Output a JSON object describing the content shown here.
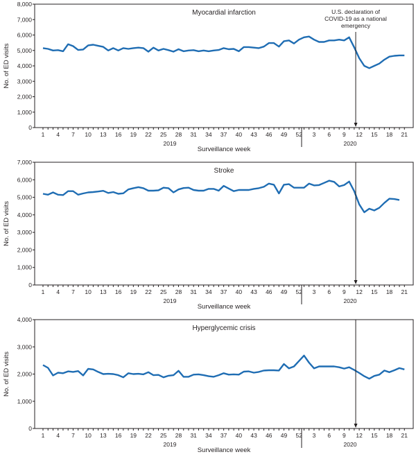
{
  "chart_data": [
    {
      "type": "line",
      "title": "Myocardial infarction",
      "ylabel": "No. of ED visits",
      "xlabel": "Surveillance week",
      "ylim": [
        0,
        8000
      ],
      "yticks": [
        0,
        1000,
        2000,
        3000,
        4000,
        5000,
        6000,
        7000,
        8000
      ],
      "ytick_labels": [
        "0",
        "1,000",
        "2,000",
        "3,000",
        "4,000",
        "5,000",
        "6,000",
        "7,000",
        "8,000"
      ],
      "years": [
        "2019",
        "2020"
      ],
      "annotation": {
        "text_lines": [
          "U.S. declaration of",
          "COVID-19 as a national",
          "emergency"
        ],
        "week_2020": 11.3
      },
      "series": [
        {
          "name": "Myocardial infarction",
          "color": "#1f6db3",
          "values_2019": [
            5150,
            5100,
            5000,
            5020,
            4950,
            5400,
            5280,
            5030,
            5060,
            5330,
            5370,
            5300,
            5230,
            5000,
            5150,
            5000,
            5150,
            5100,
            5150,
            5180,
            5150,
            4920,
            5180,
            5000,
            5100,
            5020,
            4920,
            5080,
            4950,
            5000,
            5020,
            4950,
            5000,
            4950,
            5000,
            5030,
            5150,
            5080,
            5100,
            4950,
            5220,
            5220,
            5180,
            5150,
            5250,
            5480,
            5480,
            5250,
            5600,
            5650,
            5450,
            5700
          ],
          "values_2020": [
            5850,
            5900,
            5700,
            5550,
            5550,
            5650,
            5650,
            5700,
            5650,
            5850,
            5200,
            4500,
            4000,
            3850,
            4000,
            4150,
            4400,
            4600,
            4650,
            4680,
            4680
          ]
        }
      ]
    },
    {
      "type": "line",
      "title": "Stroke",
      "ylabel": "No. of ED visits",
      "xlabel": "Surveillance week",
      "ylim": [
        0,
        7000
      ],
      "yticks": [
        0,
        1000,
        2000,
        3000,
        4000,
        5000,
        6000,
        7000
      ],
      "ytick_labels": [
        "0",
        "1,000",
        "2,000",
        "3,000",
        "4,000",
        "5,000",
        "6,000",
        "7,000"
      ],
      "years": [
        "2019",
        "2020"
      ],
      "annotation": {
        "week_2020": 11.3
      },
      "series": [
        {
          "name": "Stroke",
          "color": "#1f6db3",
          "values_2019": [
            5200,
            5150,
            5280,
            5150,
            5130,
            5350,
            5350,
            5150,
            5220,
            5280,
            5300,
            5330,
            5370,
            5250,
            5300,
            5200,
            5230,
            5450,
            5520,
            5580,
            5520,
            5380,
            5380,
            5400,
            5550,
            5520,
            5280,
            5450,
            5530,
            5550,
            5420,
            5380,
            5380,
            5480,
            5480,
            5380,
            5650,
            5500,
            5350,
            5420,
            5420,
            5420,
            5480,
            5520,
            5600,
            5780,
            5720,
            5220,
            5720,
            5750,
            5550,
            5550
          ],
          "values_2020": [
            5550,
            5780,
            5680,
            5700,
            5820,
            5950,
            5880,
            5620,
            5700,
            5900,
            5350,
            4600,
            4150,
            4350,
            4250,
            4400,
            4680,
            4920,
            4900,
            4850
          ]
        }
      ]
    },
    {
      "type": "line",
      "title": "Hyperglycemic crisis",
      "ylabel": "No. of ED visits",
      "xlabel": "Surveillance week",
      "ylim": [
        0,
        4000
      ],
      "yticks": [
        0,
        1000,
        2000,
        3000,
        4000
      ],
      "ytick_labels": [
        "0",
        "1,000",
        "2,000",
        "3,000",
        "4,000"
      ],
      "years": [
        "2019",
        "2020"
      ],
      "annotation": {
        "week_2020": 11.3
      },
      "series": [
        {
          "name": "Hyperglycemic crisis",
          "color": "#1f6db3",
          "values_2019": [
            2330,
            2230,
            1950,
            2050,
            2030,
            2100,
            2080,
            2110,
            1950,
            2190,
            2170,
            2080,
            2000,
            2010,
            2000,
            1960,
            1880,
            2030,
            2000,
            2010,
            1990,
            2070,
            1960,
            1970,
            1880,
            1940,
            1960,
            2120,
            1900,
            1900,
            1980,
            1990,
            1960,
            1920,
            1900,
            1960,
            2030,
            1980,
            1990,
            1980,
            2090,
            2100,
            2050,
            2080,
            2130,
            2140,
            2140,
            2130,
            2370,
            2210,
            2280,
            2480
          ],
          "values_2020": [
            2680,
            2420,
            2210,
            2280,
            2280,
            2280,
            2280,
            2250,
            2200,
            2250,
            2150,
            2040,
            1920,
            1830,
            1930,
            1980,
            2130,
            2070,
            2140,
            2220,
            2170
          ]
        }
      ]
    }
  ],
  "xtick_labels_2019": [
    "1",
    "4",
    "7",
    "10",
    "13",
    "16",
    "19",
    "22",
    "25",
    "28",
    "31",
    "34",
    "37",
    "40",
    "43",
    "46",
    "49",
    "52"
  ],
  "xtick_labels_2020": [
    "3",
    "6",
    "9",
    "12",
    "15",
    "18",
    "21"
  ]
}
